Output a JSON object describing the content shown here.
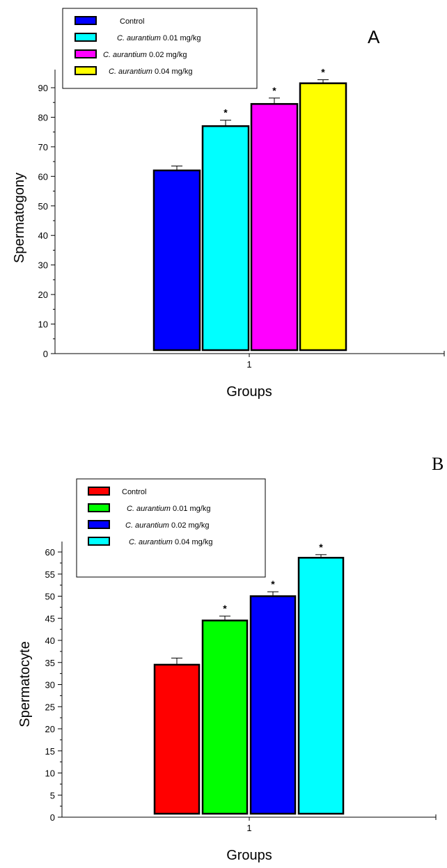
{
  "chart_data": [
    {
      "type": "bar",
      "panel_label": "A",
      "categories": [
        "1"
      ],
      "series": [
        {
          "name": "Control",
          "value": 62,
          "error": 1.5,
          "color": "#0000ff",
          "significant": false
        },
        {
          "name": "C. aurantium 0.01 mg/kg",
          "value": 77,
          "error": 2,
          "color": "#00ffff",
          "significant": true
        },
        {
          "name": "C. aurantium 0.02 mg/kg",
          "value": 84.5,
          "error": 2,
          "color": "#ff00ff",
          "significant": true
        },
        {
          "name": "C. aurantium 0.04 mg/kg",
          "value": 91.5,
          "error": 1.2,
          "color": "#ffff00",
          "significant": true
        }
      ],
      "significance_marker": "*",
      "xlabel": "Groups",
      "ylabel": "Spermatogony",
      "ylim": [
        0,
        90
      ],
      "yticks": [
        0,
        10,
        20,
        30,
        40,
        50,
        60,
        70,
        80,
        90
      ],
      "legend_position": "top-left",
      "grid": false
    },
    {
      "type": "bar",
      "panel_label": "B",
      "categories": [
        "1"
      ],
      "series": [
        {
          "name": "Control",
          "value": 34.5,
          "error": 1.5,
          "color": "#ff0000",
          "significant": false
        },
        {
          "name": "C. aurantium 0.01 mg/kg",
          "value": 44.5,
          "error": 1,
          "color": "#00ff00",
          "significant": true
        },
        {
          "name": "C. aurantium 0.02 mg/kg",
          "value": 50,
          "error": 1,
          "color": "#0000ff",
          "significant": true
        },
        {
          "name": "C. aurantium 0.04 mg/kg",
          "value": 58.7,
          "error": 0.7,
          "color": "#00ffff",
          "significant": true
        }
      ],
      "significance_marker": "*",
      "xlabel": "Groups",
      "ylabel": "Spermatocyte",
      "ylim": [
        0,
        60
      ],
      "yticks": [
        0,
        5,
        10,
        15,
        20,
        25,
        30,
        35,
        40,
        45,
        50,
        55,
        60
      ],
      "legend_position": "top-left",
      "grid": false
    }
  ]
}
